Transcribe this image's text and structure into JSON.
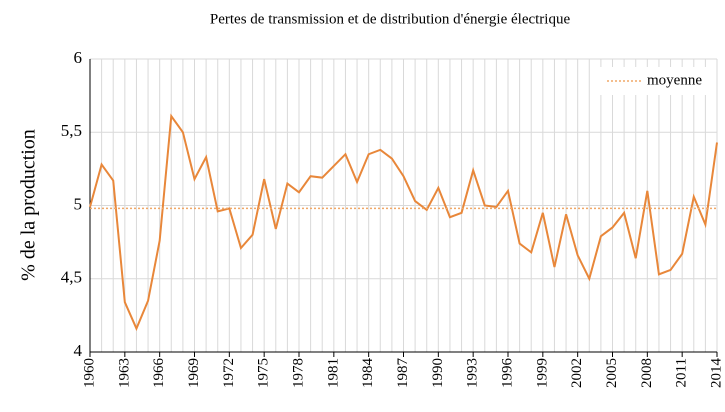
{
  "chart_data": {
    "type": "line",
    "title": "Pertes de transmission et de distribution d'énergie électrique",
    "y_label": "% de la production",
    "x": [
      1960,
      1961,
      1962,
      1963,
      1964,
      1965,
      1966,
      1967,
      1968,
      1969,
      1970,
      1971,
      1972,
      1973,
      1974,
      1975,
      1976,
      1977,
      1978,
      1979,
      1980,
      1981,
      1982,
      1983,
      1984,
      1985,
      1986,
      1987,
      1988,
      1989,
      1990,
      1991,
      1992,
      1993,
      1994,
      1995,
      1996,
      1997,
      1998,
      1999,
      2000,
      2001,
      2002,
      2003,
      2004,
      2005,
      2006,
      2007,
      2008,
      2009,
      2010,
      2011,
      2012,
      2013,
      2014
    ],
    "series": [
      {
        "name": null,
        "color": "#e8873a",
        "values": [
          4.99,
          5.28,
          5.17,
          4.34,
          4.16,
          4.35,
          4.76,
          5.61,
          5.5,
          5.18,
          5.33,
          4.96,
          4.98,
          4.71,
          4.8,
          5.18,
          4.84,
          5.15,
          5.09,
          5.2,
          5.19,
          5.27,
          5.35,
          5.16,
          5.35,
          5.38,
          5.32,
          5.2,
          5.03,
          4.97,
          5.12,
          4.92,
          4.95,
          5.24,
          5.0,
          4.99,
          5.1,
          4.74,
          4.68,
          4.95,
          4.58,
          4.94,
          4.66,
          4.5,
          4.79,
          4.85,
          4.95,
          4.64,
          5.1,
          4.53,
          4.56,
          4.67,
          5.06,
          4.87,
          5.43
        ]
      }
    ],
    "mean": {
      "name": "moyenne",
      "value": 4.98,
      "color": "#f0a868"
    },
    "xlim": [
      1960,
      2014
    ],
    "xticks": [
      1960,
      1963,
      1966,
      1969,
      1972,
      1975,
      1978,
      1981,
      1984,
      1987,
      1990,
      1993,
      1996,
      1999,
      2002,
      2005,
      2008,
      2011,
      2014
    ],
    "ylim": [
      4,
      6
    ],
    "yticks": [
      4,
      {
        "value": 4.5,
        "label": "4,5"
      },
      5,
      {
        "value": 5.5,
        "label": "5,5"
      },
      6
    ],
    "grid": true,
    "legend": "top-right"
  }
}
